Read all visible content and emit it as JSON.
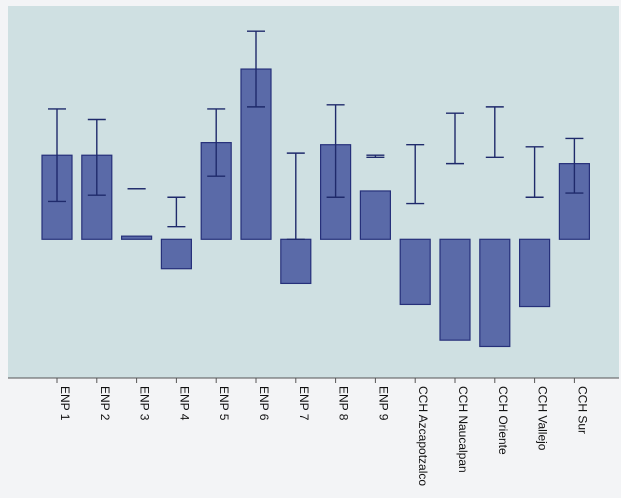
{
  "chart_data": {
    "type": "bar",
    "title": "",
    "xlabel": "",
    "ylabel": "",
    "grid": false,
    "legend": "none",
    "categories": [
      "ENP 1",
      "ENP 2",
      "ENP 3",
      "ENP 4",
      "ENP 5",
      "ENP 6",
      "ENP 7",
      "ENP 8",
      "ENP 9",
      "CCH Azcapotzalco",
      "CCH Naucalpan",
      "CCH Oriente",
      "CCH Vallejo",
      "CCH Sur"
    ],
    "values": [
      80,
      80,
      3,
      -28,
      92,
      162,
      -42,
      90,
      46,
      -62,
      -96,
      -102,
      -64,
      72
    ],
    "error_low": [
      36,
      42,
      48,
      40,
      60,
      126,
      82,
      40,
      78,
      90,
      120,
      126,
      88,
      44
    ],
    "error_high": [
      124,
      114,
      48,
      12,
      124,
      198,
      0,
      128,
      80,
      34,
      72,
      78,
      40,
      96
    ],
    "ylim": [
      -132,
      222
    ],
    "colors": {
      "bar_fill": "#5a6aa8",
      "bar_stroke": "#26307a",
      "error": "#1f2a6b",
      "plot_bg": "#cfe0e2"
    }
  }
}
